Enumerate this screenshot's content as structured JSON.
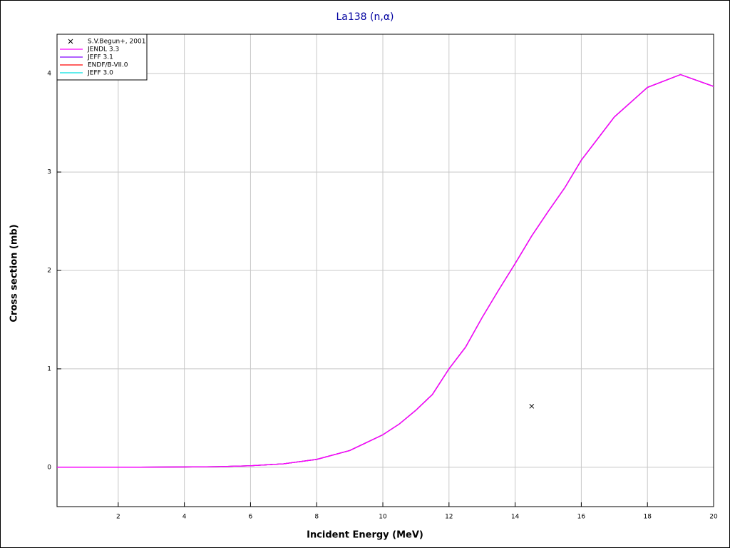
{
  "chart_data": {
    "type": "line",
    "title": "La138 (n,α)",
    "x_label": "Incident Energy (MeV)",
    "y_label": "Cross section (mb)",
    "x": [
      0.15,
      2,
      4,
      5,
      6,
      7,
      8,
      9,
      10,
      10.5,
      11,
      11.5,
      12,
      12.5,
      13,
      13.5,
      14,
      14.5,
      15,
      15.5,
      16,
      16.5,
      17,
      18,
      19,
      20
    ],
    "series": [
      {
        "name": "JENDL 3.3",
        "color": "#ff00ff",
        "values": [
          0,
          0,
          0.003,
          0.006,
          0.015,
          0.035,
          0.08,
          0.17,
          0.33,
          0.44,
          0.58,
          0.74,
          1.0,
          1.22,
          1.52,
          1.8,
          2.07,
          2.35,
          2.6,
          2.84,
          3.12,
          3.34,
          3.56,
          3.86,
          3.99,
          3.87
        ]
      },
      {
        "name": "JEFF 3.1",
        "color": "#8000ff",
        "values": [
          0,
          0,
          0.003,
          0.006,
          0.015,
          0.035,
          0.08,
          0.17,
          0.33,
          0.44,
          0.58,
          0.74,
          1.0,
          1.22,
          1.52,
          1.8,
          2.07,
          2.35,
          2.6,
          2.84,
          3.12,
          3.34,
          3.56,
          3.86,
          3.99,
          3.87
        ]
      },
      {
        "name": "ENDF/B-VII.0",
        "color": "#ff0000",
        "values": [
          0,
          0,
          0.003,
          0.006,
          0.015,
          0.035,
          0.08,
          0.17,
          0.33,
          0.44,
          0.58,
          0.74,
          1.0,
          1.22,
          1.52,
          1.8,
          2.07,
          2.35,
          2.6,
          2.84,
          3.12,
          3.34,
          3.56,
          3.86,
          3.99,
          3.87
        ]
      },
      {
        "name": "JEFF 3.0",
        "color": "#00e0e0",
        "values": [
          0,
          0,
          0.003,
          0.006,
          0.015,
          0.035,
          0.08,
          0.17,
          0.33,
          0.44,
          0.58,
          0.74,
          1.0,
          1.22,
          1.52,
          1.8,
          2.07,
          2.35,
          2.6,
          2.84,
          3.12,
          3.34,
          3.56,
          3.86,
          3.99,
          3.87
        ]
      }
    ],
    "points": {
      "name": "S.V.Begun+, 2001",
      "color": "#000000",
      "x": [
        14.5
      ],
      "values": [
        0.62
      ]
    },
    "xlim": [
      0.15,
      20
    ],
    "ylim": [
      -0.4,
      4.4
    ],
    "xticks": [
      2,
      4,
      6,
      8,
      10,
      12,
      14,
      16,
      18,
      20
    ],
    "yticks": [
      0,
      1,
      2,
      3,
      4
    ],
    "grid": true,
    "legend": "top-left"
  }
}
